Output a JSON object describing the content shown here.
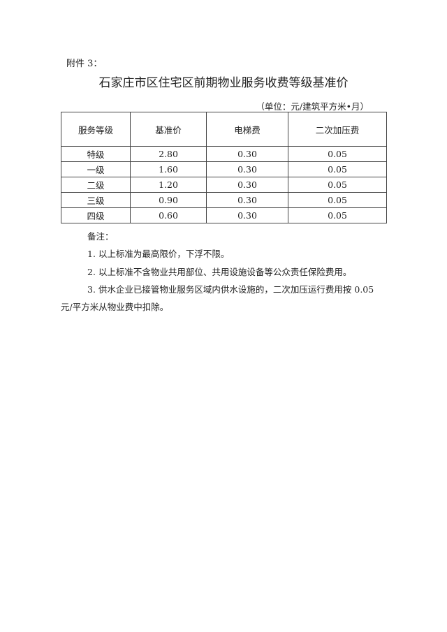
{
  "attachment_label": "附件 3：",
  "title": "石家庄市区住宅区前期物业服务收费等级基准价",
  "unit": "（单位：元/建筑平方米•月）",
  "table": {
    "headers": [
      "服务等级",
      "基准价",
      "电梯费",
      "二次加压费"
    ],
    "rows": [
      [
        "特级",
        "2.80",
        "0.30",
        "0.05"
      ],
      [
        "一级",
        "1.60",
        "0.30",
        "0.05"
      ],
      [
        "二级",
        "1.20",
        "0.30",
        "0.05"
      ],
      [
        "三级",
        "0.90",
        "0.30",
        "0.05"
      ],
      [
        "四级",
        "0.60",
        "0.30",
        "0.05"
      ]
    ]
  },
  "notes": {
    "title": "备注：",
    "items": [
      "1. 以上标准为最高限价，下浮不限。",
      "2. 以上标准不含物业共用部位、共用设施设备等公众责任保险费用。",
      "3. 供水企业已接管物业服务区域内供水设施的，二次加压运行费用按 0.05",
      "元/平方米从物业费中扣除。"
    ]
  }
}
